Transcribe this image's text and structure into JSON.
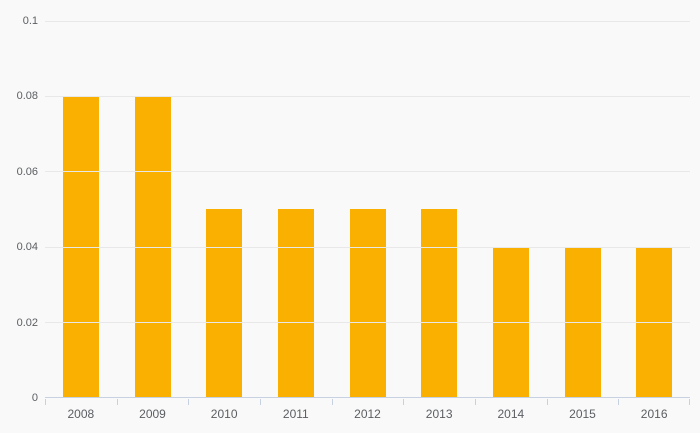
{
  "chart_data": {
    "type": "bar",
    "title": "",
    "categories": [
      "2008",
      "2009",
      "2010",
      "2011",
      "2012",
      "2013",
      "2014",
      "2015",
      "2016"
    ],
    "values": [
      0.08,
      0.08,
      0.05,
      0.05,
      0.05,
      0.05,
      0.04,
      0.04,
      0.04
    ],
    "xlabel": "",
    "ylabel": "",
    "ylim": [
      0,
      0.1
    ],
    "y_ticks": [
      {
        "value": 0,
        "label": "0"
      },
      {
        "value": 0.02,
        "label": "0.02"
      },
      {
        "value": 0.04,
        "label": "0.04"
      },
      {
        "value": 0.06,
        "label": "0.06"
      },
      {
        "value": 0.08,
        "label": "0.08"
      },
      {
        "value": 0.1,
        "label": "0.1"
      }
    ],
    "grid": "horizontal",
    "legend_position": "none"
  },
  "colors": {
    "bar": "#f9b000",
    "background": "#f9f9f9",
    "gridline": "#e8e8e8",
    "axis": "#c7d1e2",
    "text": "#5b5e62"
  }
}
